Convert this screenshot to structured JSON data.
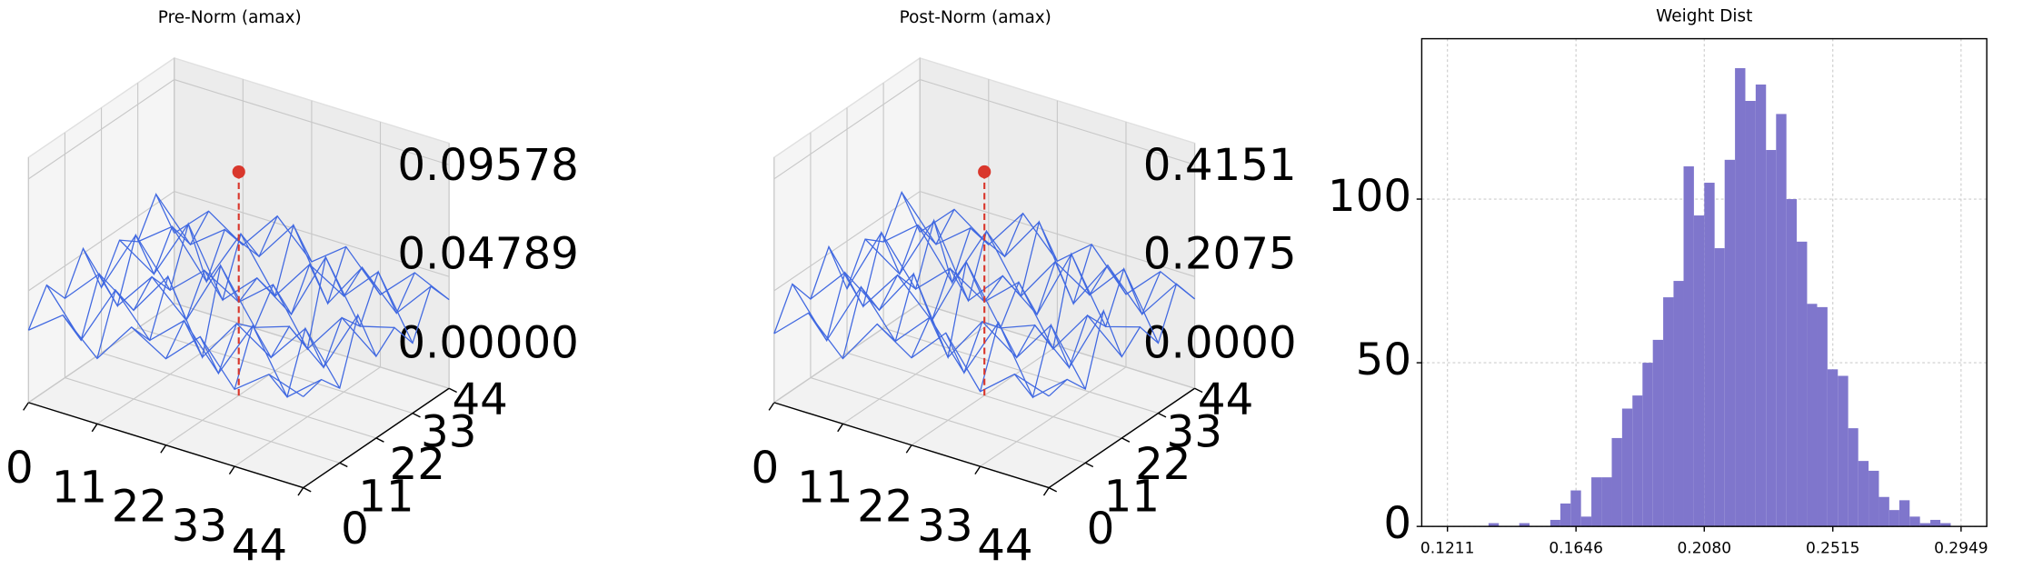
{
  "chart_data": [
    {
      "type": "wireframe3d",
      "title": "Pre-Norm (amax)",
      "color": "#4169e1",
      "peak_color": "#d9372c",
      "x": [
        0,
        5.5,
        11,
        16.5,
        22,
        27.5,
        33,
        38.5,
        44
      ],
      "y": [
        0,
        5.5,
        11,
        16.5,
        22,
        27.5,
        33,
        38.5,
        44
      ],
      "z": [
        [
          0.031,
          0.042,
          0.028,
          0.046,
          0.037,
          0.051,
          0.033,
          0.044,
          0.039
        ],
        [
          0.045,
          0.026,
          0.052,
          0.035,
          0.048,
          0.03,
          0.055,
          0.029,
          0.041
        ],
        [
          0.034,
          0.049,
          0.038,
          0.057,
          0.027,
          0.046,
          0.036,
          0.053,
          0.032
        ],
        [
          0.05,
          0.03,
          0.047,
          0.033,
          0.061,
          0.039,
          0.044,
          0.031,
          0.058
        ],
        [
          0.028,
          0.055,
          0.036,
          0.049,
          0.04,
          0.052,
          0.029,
          0.047,
          0.035
        ],
        [
          0.043,
          0.033,
          0.059,
          0.031,
          0.045,
          0.034,
          0.063,
          0.038,
          0.042
        ],
        [
          0.037,
          0.048,
          0.029,
          0.054,
          0.032,
          0.05,
          0.041,
          0.056,
          0.03
        ],
        [
          0.052,
          0.035,
          0.046,
          0.039,
          0.057,
          0.028,
          0.048,
          0.033,
          0.049
        ],
        [
          0.03,
          0.044,
          0.034,
          0.051,
          0.036,
          0.047,
          0.031,
          0.045,
          0.038
        ]
      ],
      "peak": {
        "x": 22,
        "y": 22,
        "z": 0.09578
      },
      "xlim": [
        0,
        44
      ],
      "ylim": [
        0,
        44
      ],
      "zlim": [
        0,
        0.105
      ],
      "xticks": [
        0,
        11,
        22,
        33,
        44
      ],
      "yticks": [
        0,
        11,
        22,
        33,
        44
      ],
      "zticks": [
        {
          "value": 0,
          "label": "0.00000"
        },
        0.04789,
        0.09578
      ]
    },
    {
      "type": "wireframe3d",
      "title": "Post-Norm (amax)",
      "color": "#4169e1",
      "peak_color": "#d9372c",
      "x": [
        0,
        5.5,
        11,
        16.5,
        22,
        27.5,
        33,
        38.5,
        44
      ],
      "y": [
        0,
        5.5,
        11,
        16.5,
        22,
        27.5,
        33,
        38.5,
        44
      ],
      "z": [
        [
          0.128,
          0.186,
          0.121,
          0.205,
          0.162,
          0.228,
          0.139,
          0.191,
          0.17
        ],
        [
          0.197,
          0.112,
          0.231,
          0.15,
          0.214,
          0.131,
          0.244,
          0.125,
          0.178
        ],
        [
          0.146,
          0.215,
          0.165,
          0.252,
          0.117,
          0.203,
          0.156,
          0.236,
          0.137
        ],
        [
          0.22,
          0.129,
          0.207,
          0.142,
          0.271,
          0.168,
          0.193,
          0.134,
          0.259
        ],
        [
          0.119,
          0.243,
          0.158,
          0.216,
          0.174,
          0.23,
          0.126,
          0.208,
          0.151
        ],
        [
          0.188,
          0.143,
          0.262,
          0.133,
          0.199,
          0.147,
          0.279,
          0.164,
          0.183
        ],
        [
          0.16,
          0.211,
          0.124,
          0.239,
          0.138,
          0.222,
          0.18,
          0.248,
          0.13
        ],
        [
          0.229,
          0.152,
          0.202,
          0.169,
          0.253,
          0.121,
          0.212,
          0.141,
          0.217
        ],
        [
          0.132,
          0.194,
          0.148,
          0.226,
          0.157,
          0.208,
          0.135,
          0.197,
          0.166
        ]
      ],
      "peak": {
        "x": 22,
        "y": 22,
        "z": 0.4151
      },
      "xlim": [
        0,
        44
      ],
      "ylim": [
        0,
        44
      ],
      "zlim": [
        0,
        0.455
      ],
      "xticks": [
        0,
        11,
        22,
        33,
        44
      ],
      "yticks": [
        0,
        11,
        22,
        33,
        44
      ],
      "zticks": [
        {
          "value": 0,
          "label": "0.0000"
        },
        0.2075,
        0.4151
      ]
    },
    {
      "type": "histogram",
      "title": "Weight Dist",
      "color": "#7f76cc",
      "grid": true,
      "bins": [
        0.1211,
        0.1246,
        0.1281,
        0.1315,
        0.135,
        0.1385,
        0.142,
        0.1454,
        0.1489,
        0.1524,
        0.1559,
        0.1593,
        0.1628,
        0.1663,
        0.1698,
        0.1732,
        0.1767,
        0.1802,
        0.1837,
        0.1871,
        0.1906,
        0.1941,
        0.1976,
        0.201,
        0.2045,
        0.208,
        0.2115,
        0.2149,
        0.2184,
        0.2219,
        0.2254,
        0.2289,
        0.2323,
        0.2358,
        0.2393,
        0.2428,
        0.2462,
        0.2497,
        0.2532,
        0.2567,
        0.2601,
        0.2636,
        0.2671,
        0.2706,
        0.274,
        0.2775,
        0.281,
        0.2845,
        0.2879,
        0.2914,
        0.2949
      ],
      "values": [
        0,
        0,
        0,
        0,
        1,
        0,
        0,
        1,
        0,
        0,
        2,
        7,
        11,
        3,
        15,
        15,
        27,
        36,
        40,
        50,
        57,
        70,
        75,
        110,
        95,
        105,
        85,
        112,
        140,
        130,
        135,
        115,
        126,
        100,
        87,
        68,
        67,
        48,
        46,
        30,
        20,
        17,
        9,
        5,
        8,
        3,
        1,
        2,
        1,
        0
      ],
      "xlim": [
        0.1124,
        0.3036
      ],
      "ylim": [
        0,
        149
      ],
      "xticks": [
        0.1211,
        0.1646,
        {
          "value": 0.208,
          "label": "0.2080"
        },
        0.2515,
        0.2949
      ],
      "yticks": [
        0,
        50,
        100
      ]
    }
  ]
}
